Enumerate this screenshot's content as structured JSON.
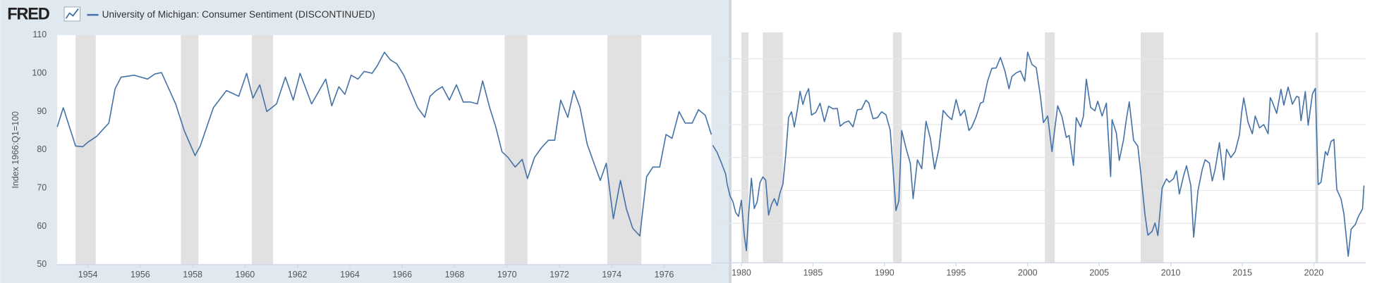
{
  "header": {
    "logo": "FRED"
  },
  "chart_data": [
    {
      "type": "line",
      "ylabel": "Index 1966:Q1=100",
      "grid": false,
      "ytick_labels": true,
      "xlim": [
        1952.83,
        1977.8
      ],
      "ylim": [
        50,
        110
      ],
      "xticks": [
        1954,
        1956,
        1958,
        1960,
        1962,
        1964,
        1966,
        1968,
        1970,
        1972,
        1974,
        1976
      ],
      "yticks": [
        50,
        60,
        70,
        80,
        90,
        100,
        110
      ],
      "recession_color": "#e1e1e1",
      "recessions": [
        [
          1953.53,
          1954.3
        ],
        [
          1957.55,
          1958.22
        ],
        [
          1960.26,
          1961.07
        ],
        [
          1969.91,
          1970.78
        ],
        [
          1973.83,
          1975.13
        ]
      ],
      "x": [
        1952.83,
        1953.06,
        1953.53,
        1953.8,
        1954.0,
        1954.33,
        1954.8,
        1955.04,
        1955.27,
        1955.77,
        1956.28,
        1956.55,
        1956.81,
        1957.35,
        1957.68,
        1958.09,
        1958.29,
        1958.79,
        1959.29,
        1959.76,
        1960.06,
        1960.3,
        1960.56,
        1960.83,
        1961.2,
        1961.54,
        1961.84,
        1962.1,
        1962.54,
        1963.08,
        1963.31,
        1963.58,
        1963.81,
        1964.05,
        1964.31,
        1964.55,
        1964.85,
        1965.05,
        1965.32,
        1965.55,
        1965.79,
        1966.06,
        1966.59,
        1966.86,
        1967.06,
        1967.3,
        1967.53,
        1967.8,
        1968.07,
        1968.33,
        1968.6,
        1968.87,
        1969.07,
        1969.34,
        1969.57,
        1969.81,
        1970.04,
        1970.31,
        1970.58,
        1970.78,
        1971.05,
        1971.31,
        1971.58,
        1971.82,
        1972.05,
        1972.32,
        1972.55,
        1972.79,
        1973.06,
        1973.32,
        1973.56,
        1973.79,
        1974.06,
        1974.33,
        1974.56,
        1974.8,
        1975.07,
        1975.33,
        1975.57,
        1975.83,
        1976.07,
        1976.3,
        1976.57,
        1976.8,
        1977.07,
        1977.31,
        1977.57,
        1977.8
      ],
      "series": [
        {
          "name": "University of Michigan: Consumer Sentiment (DISCONTINUED)",
          "color": "#4572a7",
          "values": [
            86,
            91,
            81,
            80.8,
            82,
            83.5,
            87,
            96,
            99,
            99.5,
            98.5,
            99.8,
            100.2,
            92,
            85,
            78.5,
            81,
            91,
            95.5,
            94,
            100,
            93.5,
            97,
            90,
            92,
            99,
            93,
            100,
            92,
            98.5,
            91.5,
            96.5,
            94.5,
            99.5,
            98.5,
            100.5,
            100,
            102,
            105.5,
            103.5,
            102.5,
            99.5,
            91,
            88.5,
            94,
            95.5,
            96.5,
            93,
            97,
            92.5,
            92.5,
            92,
            98,
            91,
            86,
            79.5,
            78,
            75.5,
            77.5,
            72.5,
            78,
            80.5,
            82.5,
            82.5,
            93,
            88.5,
            95.5,
            91,
            81.5,
            76.5,
            72,
            76.5,
            62,
            72,
            64.5,
            59.5,
            57.5,
            73,
            75.5,
            75.5,
            84,
            83,
            90,
            87,
            87,
            90.5,
            89,
            84
          ]
        }
      ]
    },
    {
      "type": "line",
      "grid": true,
      "ytick_labels": false,
      "xlim": [
        1977.9,
        2023.6
      ],
      "ylim": [
        48,
        118
      ],
      "xticks": [
        1980,
        1985,
        1990,
        1995,
        2000,
        2005,
        2010,
        2015,
        2020
      ],
      "yticks": [
        60,
        70,
        80,
        90,
        100,
        110
      ],
      "recession_color": "#e1e1e1",
      "recessions": [
        [
          1980.0,
          1980.5
        ],
        [
          1981.5,
          1982.9
        ],
        [
          1990.6,
          1991.2
        ],
        [
          2001.2,
          2001.9
        ],
        [
          2007.9,
          2009.5
        ],
        [
          2020.1,
          2020.3
        ]
      ],
      "x": [
        1978.0,
        1978.3,
        1978.6,
        1978.9,
        1979.0,
        1979.2,
        1979.4,
        1979.6,
        1979.8,
        1980.0,
        1980.2,
        1980.35,
        1980.5,
        1980.7,
        1980.9,
        1981.1,
        1981.3,
        1981.5,
        1981.7,
        1981.9,
        1982.1,
        1982.3,
        1982.5,
        1982.7,
        1982.9,
        1983.1,
        1983.3,
        1983.5,
        1983.7,
        1983.9,
        1984.1,
        1984.3,
        1984.5,
        1984.7,
        1984.9,
        1985.2,
        1985.5,
        1985.8,
        1986.1,
        1986.4,
        1986.7,
        1986.9,
        1987.2,
        1987.5,
        1987.8,
        1988.1,
        1988.4,
        1988.7,
        1988.9,
        1989.2,
        1989.5,
        1989.8,
        1990.1,
        1990.4,
        1990.6,
        1990.8,
        1991.0,
        1991.2,
        1991.5,
        1991.8,
        1992.0,
        1992.3,
        1992.6,
        1992.9,
        1993.2,
        1993.5,
        1993.8,
        1994.1,
        1994.4,
        1994.7,
        1995.0,
        1995.3,
        1995.6,
        1995.9,
        1996.1,
        1996.4,
        1996.7,
        1996.9,
        1997.2,
        1997.5,
        1997.8,
        1998.1,
        1998.4,
        1998.7,
        1998.9,
        1999.2,
        1999.5,
        1999.8,
        2000.0,
        2000.3,
        2000.6,
        2000.9,
        2001.1,
        2001.4,
        2001.7,
        2001.9,
        2002.1,
        2002.4,
        2002.7,
        2002.9,
        2003.2,
        2003.4,
        2003.7,
        2003.9,
        2004.1,
        2004.4,
        2004.7,
        2004.9,
        2005.2,
        2005.5,
        2005.8,
        2005.9,
        2006.2,
        2006.4,
        2006.7,
        2006.9,
        2007.1,
        2007.4,
        2007.7,
        2007.9,
        2008.2,
        2008.4,
        2008.7,
        2008.9,
        2009.1,
        2009.4,
        2009.7,
        2009.9,
        2010.2,
        2010.4,
        2010.6,
        2010.9,
        2011.1,
        2011.4,
        2011.6,
        2011.9,
        2012.2,
        2012.4,
        2012.7,
        2012.9,
        2013.1,
        2013.4,
        2013.7,
        2013.9,
        2014.2,
        2014.5,
        2014.8,
        2014.95,
        2015.1,
        2015.4,
        2015.7,
        2015.9,
        2016.2,
        2016.5,
        2016.8,
        2016.95,
        2017.1,
        2017.4,
        2017.7,
        2017.9,
        2018.2,
        2018.5,
        2018.8,
        2018.95,
        2019.1,
        2019.4,
        2019.6,
        2019.9,
        2020.1,
        2020.3,
        2020.5,
        2020.8,
        2020.95,
        2021.2,
        2021.4,
        2021.6,
        2021.9,
        2022.1,
        2022.4,
        2022.6,
        2022.9,
        2023.1,
        2023.4,
        2023.5
      ],
      "series": [
        {
          "color": "#4572a7",
          "values": [
            83.7,
            81.6,
            78.4,
            75.0,
            72.1,
            68.4,
            66.7,
            63.3,
            62.1,
            67.0,
            56.5,
            51.7,
            62.3,
            73.7,
            64.5,
            66.5,
            72.4,
            74.1,
            73.1,
            62.5,
            65.7,
            67.5,
            65.4,
            69.3,
            71.9,
            80.8,
            92.2,
            93.9,
            89.3,
            94.2,
            100.1,
            96.1,
            99.1,
            100.9,
            92.9,
            93.7,
            96.5,
            90.9,
            95.6,
            94.8,
            94.9,
            89.5,
            90.6,
            91.1,
            89.3,
            94.5,
            94.7,
            97.4,
            96.6,
            91.8,
            92.1,
            93.9,
            93.0,
            88.3,
            76.4,
            63.9,
            66.8,
            88.2,
            82.9,
            78.3,
            67.5,
            79.3,
            76.6,
            91.0,
            85.9,
            76.5,
            82.7,
            94.3,
            92.7,
            91.5,
            97.6,
            92.7,
            94.4,
            88.2,
            89.3,
            92.4,
            96.5,
            96.9,
            103.2,
            107.1,
            107.2,
            110.4,
            106.5,
            100.9,
            104.6,
            105.7,
            106.3,
            103.2,
            112.0,
            108.3,
            107.3,
            98.4,
            90.6,
            92.6,
            81.8,
            88.8,
            95.7,
            92.4,
            86.1,
            86.7,
            77.6,
            92.1,
            89.3,
            92.6,
            103.8,
            95.2,
            94.2,
            97.1,
            92.6,
            96.5,
            74.2,
            91.5,
            87.4,
            79.1,
            85.4,
            91.7,
            96.9,
            85.3,
            83.4,
            75.5,
            62.6,
            56.4,
            57.6,
            60.1,
            56.3,
            70.8,
            73.5,
            72.5,
            73.6,
            76.0,
            68.9,
            74.5,
            77.5,
            71.5,
            55.8,
            69.9,
            76.4,
            79.3,
            78.3,
            72.9,
            76.4,
            84.5,
            73.2,
            82.5,
            80.0,
            81.8,
            86.9,
            93.6,
            98.1,
            90.7,
            87.2,
            92.6,
            89.0,
            90.0,
            87.2,
            98.2,
            96.9,
            93.4,
            100.7,
            95.9,
            101.4,
            96.2,
            98.6,
            98.3,
            91.2,
            100.0,
            89.8,
            99.3,
            101.0,
            71.8,
            72.5,
            81.8,
            80.7,
            84.9,
            85.5,
            70.3,
            67.4,
            62.8,
            50.0,
            58.2,
            59.7,
            62.0,
            64.4,
            71.5
          ]
        }
      ]
    }
  ]
}
